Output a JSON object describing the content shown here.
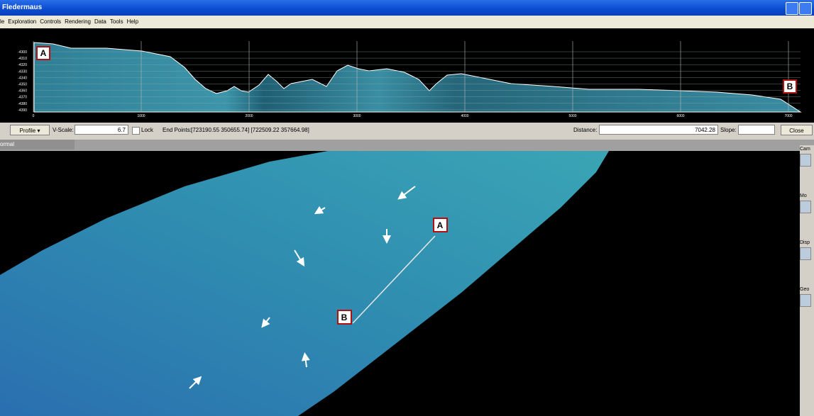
{
  "window": {
    "title": "Fledermaus"
  },
  "menu": [
    "le",
    "Exploration",
    "Controls",
    "Rendering",
    "Data",
    "Tools",
    "Help"
  ],
  "profile": {
    "y_tick_labels": [
      -4300,
      -4310,
      -4320,
      -4330,
      -4340,
      -4350,
      -4360,
      -4370,
      -4380,
      -4390
    ],
    "x_tick_labels": [
      0,
      1000,
      2000,
      3000,
      4000,
      5000,
      6000,
      7000
    ],
    "markers": [
      "A",
      "B"
    ]
  },
  "toolbar": {
    "mode": "Profile",
    "vscale_label": "V-Scale:",
    "vscale": "6.7",
    "lock": "Lock",
    "endpoints_label": "End Points:",
    "endpoints": "[723190.55 350655.74] [722509.22 357664.98]",
    "distance_label": "Distance:",
    "distance": "7042.28",
    "slope_label": "Slope:",
    "close": "Close"
  },
  "status": {
    "mode": "ormal"
  },
  "side_panel": {
    "sections": [
      "Cam",
      "Mo",
      "Disp",
      "Geo"
    ]
  },
  "map": {
    "markers": [
      "A",
      "B"
    ]
  }
}
